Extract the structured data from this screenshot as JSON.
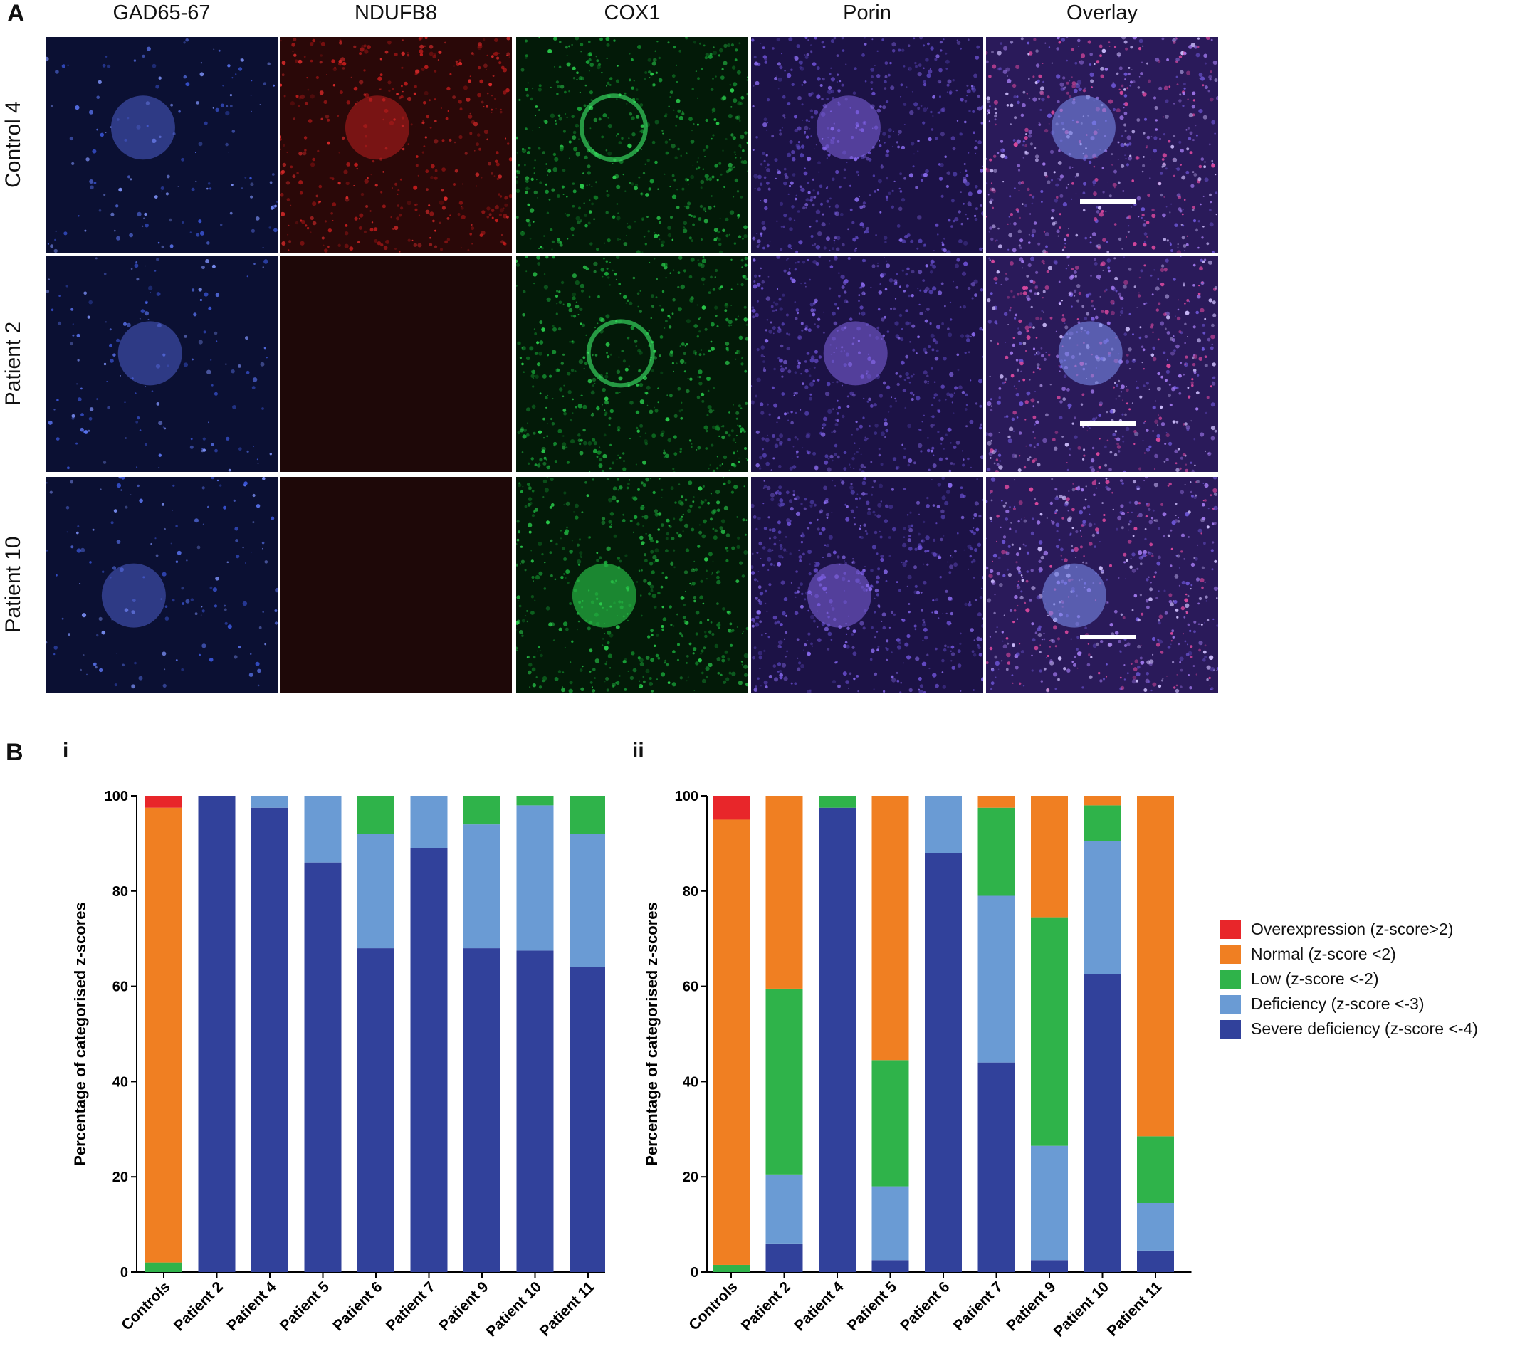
{
  "panelA": {
    "letter": "A",
    "columns": [
      "GAD65-67",
      "NDUFB8",
      "COX1",
      "Porin",
      "Overlay"
    ],
    "rows": [
      "Control 4",
      "Patient 2",
      "Patient 10"
    ]
  },
  "panelB": {
    "letter": "B",
    "legend": [
      {
        "label": "Overexpression (z-score>2)",
        "color": "#e8262a"
      },
      {
        "label": "Normal (z-score <2)",
        "color": "#f07f22"
      },
      {
        "label": "Low (z-score <-2)",
        "color": "#2fb34a"
      },
      {
        "label": "Deficiency (z-score <-3)",
        "color": "#6a9bd4"
      },
      {
        "label": "Severe deficiency (z-score <-4)",
        "color": "#31419b"
      }
    ]
  },
  "chart_data": [
    {
      "type": "bar",
      "stacked": true,
      "label": "i",
      "ylabel": "Percentage of categorised z-scores",
      "ylim": [
        0,
        100
      ],
      "yticks": [
        0,
        20,
        40,
        60,
        80,
        100
      ],
      "categories": [
        "Controls",
        "Patient 2",
        "Patient 4",
        "Patient 5",
        "Patient 6",
        "Patient 7",
        "Patient 9",
        "Patient 10",
        "Patient 11"
      ],
      "series": [
        {
          "name": "Severe deficiency (z-score <-4)",
          "values": [
            0,
            100,
            97.5,
            86,
            68,
            89,
            68,
            67.5,
            64
          ]
        },
        {
          "name": "Deficiency (z-score <-3)",
          "values": [
            0,
            0,
            2.5,
            14,
            24,
            11,
            26,
            30.5,
            28
          ]
        },
        {
          "name": "Low (z-score <-2)",
          "values": [
            2,
            0,
            0,
            0,
            8,
            0,
            6,
            2,
            8
          ]
        },
        {
          "name": "Normal (z-score <2)",
          "values": [
            95.5,
            0,
            0,
            0,
            0,
            0,
            0,
            0,
            0
          ]
        },
        {
          "name": "Overexpression (z-score>2)",
          "values": [
            2.5,
            0,
            0,
            0,
            0,
            0,
            0,
            0,
            0
          ]
        }
      ]
    },
    {
      "type": "bar",
      "stacked": true,
      "label": "ii",
      "ylabel": "Percentage of categorised z-scores",
      "ylim": [
        0,
        100
      ],
      "yticks": [
        0,
        20,
        40,
        60,
        80,
        100
      ],
      "categories": [
        "Controls",
        "Patient 2",
        "Patient 4",
        "Patient 5",
        "Patient 6",
        "Patient 7",
        "Patient 9",
        "Patient 10",
        "Patient 11"
      ],
      "series": [
        {
          "name": "Severe deficiency (z-score <-4)",
          "values": [
            0,
            6,
            97.5,
            2.5,
            88,
            44,
            2.5,
            62.5,
            4.5
          ]
        },
        {
          "name": "Deficiency (z-score <-3)",
          "values": [
            0,
            14.5,
            0,
            15.5,
            12,
            35,
            24,
            28,
            10
          ]
        },
        {
          "name": "Low (z-score <-2)",
          "values": [
            1.5,
            39,
            2.5,
            26.5,
            0,
            18.5,
            48,
            7.5,
            14
          ]
        },
        {
          "name": "Normal (z-score <2)",
          "values": [
            93.5,
            40.5,
            0,
            55.5,
            0,
            2.5,
            25.5,
            2,
            71.5
          ]
        },
        {
          "name": "Overexpression (z-score>2)",
          "values": [
            5,
            0,
            0,
            0,
            0,
            0,
            0,
            0,
            0
          ]
        }
      ]
    }
  ]
}
